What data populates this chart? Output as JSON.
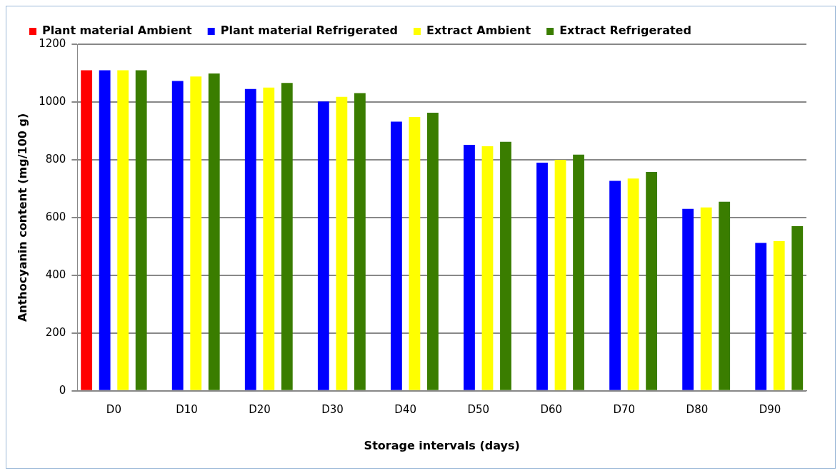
{
  "chart_data": {
    "type": "bar",
    "xlabel": "Storage intervals (days)",
    "ylabel": "Anthocyanin content (mg/100 g)",
    "categories": [
      "D0",
      "D10",
      "D20",
      "D30",
      "D40",
      "D50",
      "D60",
      "D70",
      "D80",
      "D90"
    ],
    "series": [
      {
        "name": "Plant material Ambient",
        "color": "#ff0000",
        "values": [
          1110,
          0,
          0,
          0,
          0,
          0,
          0,
          0,
          0,
          0
        ]
      },
      {
        "name": "Plant material Refrigerated",
        "color": "#0000ff",
        "values": [
          1110,
          1073,
          1045,
          1002,
          932,
          852,
          790,
          727,
          630,
          512
        ]
      },
      {
        "name": "Extract Ambient",
        "color": "#ffff00",
        "values": [
          1110,
          1088,
          1050,
          1018,
          948,
          847,
          800,
          735,
          635,
          518
        ]
      },
      {
        "name": "Extract Refrigerated",
        "color": "#3a7d00",
        "values": [
          1110,
          1099,
          1066,
          1031,
          963,
          862,
          818,
          758,
          655,
          570
        ]
      }
    ],
    "ylim": [
      0,
      1200
    ],
    "yticks": [
      0,
      200,
      400,
      600,
      800,
      1000,
      1200
    ],
    "grid": "y",
    "legend": "top"
  }
}
